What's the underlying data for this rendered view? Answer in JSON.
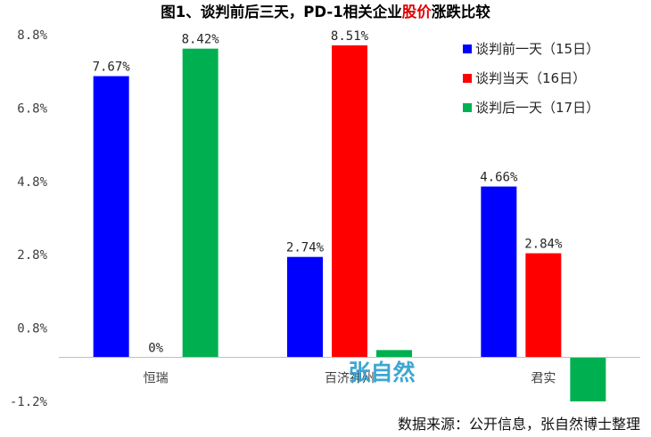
{
  "title_parts": [
    {
      "text": "图1、谈判前后三天，PD-1相关企业",
      "color": "#000000"
    },
    {
      "text": "股价",
      "color": "#e00000"
    },
    {
      "text": "涨跌比较",
      "color": "#000000"
    }
  ],
  "watermark": "张自然",
  "source": "数据来源：公开信息，张自然博士整理",
  "colors": {
    "blue": "#0000ff",
    "red": "#ff0000",
    "green": "#00b050",
    "axis": "#bfbfbf"
  },
  "chart_data": {
    "type": "bar",
    "categories": [
      "恒瑞",
      "百济神州",
      "君实"
    ],
    "series": [
      {
        "name": "谈判前一天（15日）",
        "values": [
          7.67,
          2.74,
          4.66
        ],
        "labels": [
          "7.67%",
          "2.74%",
          "4.66%"
        ],
        "color": "#0000ff"
      },
      {
        "name": "谈判当天（16日）",
        "values": [
          0,
          8.51,
          2.84
        ],
        "labels": [
          "0%",
          "8.51%",
          "2.84%"
        ],
        "color": "#ff0000"
      },
      {
        "name": "谈判后一天（17日）",
        "values": [
          8.42,
          0.2,
          -1.2
        ],
        "labels": [
          "8.42%",
          "",
          ""
        ],
        "color": "#00b050"
      }
    ],
    "y_ticks": [
      "8.8%",
      "6.8%",
      "4.8%",
      "2.8%",
      "0.8%",
      "-1.2%"
    ],
    "y_tick_values": [
      8.8,
      6.8,
      4.8,
      2.8,
      0.8,
      -1.2
    ],
    "ylim": [
      -1.2,
      8.8
    ],
    "grid": false,
    "legend_position": "top-right"
  }
}
